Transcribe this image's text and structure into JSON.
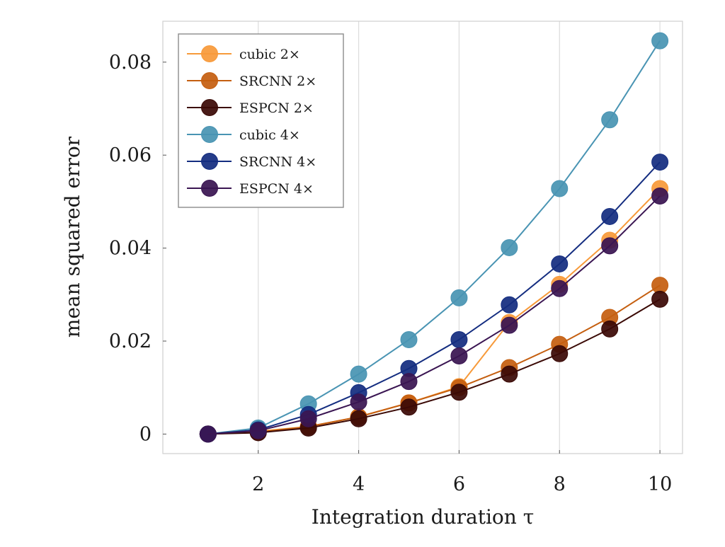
{
  "chart_data": {
    "type": "line",
    "title": "",
    "xlabel": "Integration duration τ",
    "ylabel": "mean squared error",
    "xlim": [
      0.1,
      10.45
    ],
    "ylim": [
      -0.0042,
      0.0888
    ],
    "xticks": [
      2,
      4,
      6,
      8,
      10
    ],
    "xtick_labels": [
      "2",
      "4",
      "6",
      "8",
      "10"
    ],
    "yticks": [
      0,
      0.02,
      0.04,
      0.06,
      0.08
    ],
    "ytick_labels": [
      "0",
      "0.02",
      "0.04",
      "0.06",
      "0.08"
    ],
    "grid": true,
    "legend_position": "top-left",
    "x": [
      1,
      2,
      3,
      4,
      5,
      6,
      7,
      8,
      9,
      10
    ],
    "series": [
      {
        "name": "cubic 2×",
        "color": "#f79a3a",
        "values": [
          0,
          0.0006,
          0.0016,
          0.0037,
          0.0067,
          0.0102,
          0.024,
          0.0322,
          0.0417,
          0.0528
        ]
      },
      {
        "name": "SRCNN 2×",
        "color": "#c55f10",
        "values": [
          0,
          0.0004,
          0.0016,
          0.0037,
          0.0067,
          0.01,
          0.0143,
          0.0193,
          0.0251,
          0.032
        ]
      },
      {
        "name": "ESPCN 2×",
        "color": "#3b0a06",
        "values": [
          0,
          0.0003,
          0.0013,
          0.0033,
          0.0058,
          0.009,
          0.0129,
          0.0173,
          0.0226,
          0.029
        ]
      },
      {
        "name": "cubic 4×",
        "color": "#4994b3",
        "values": [
          0,
          0.0013,
          0.0065,
          0.0129,
          0.0203,
          0.0293,
          0.0401,
          0.0528,
          0.0676,
          0.0846
        ]
      },
      {
        "name": "SRCNN 4×",
        "color": "#142d80",
        "values": [
          0,
          0.0009,
          0.0042,
          0.0089,
          0.0141,
          0.0203,
          0.0278,
          0.0366,
          0.0468,
          0.0585
        ]
      },
      {
        "name": "ESPCN 4×",
        "color": "#3a1552",
        "values": [
          0,
          0.0007,
          0.0033,
          0.0069,
          0.0113,
          0.0168,
          0.0234,
          0.0313,
          0.0405,
          0.0512
        ]
      }
    ]
  }
}
